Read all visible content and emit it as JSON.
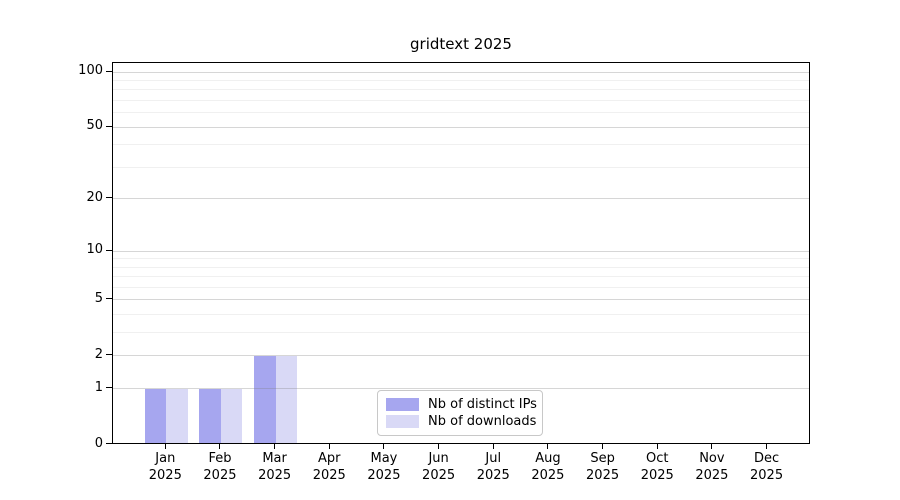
{
  "figure": {
    "background": "#ffffff"
  },
  "chart_data": {
    "type": "bar",
    "title": "gridtext 2025",
    "categories": [
      "Jan",
      "Feb",
      "Mar",
      "Apr",
      "May",
      "Jun",
      "Jul",
      "Aug",
      "Sep",
      "Oct",
      "Nov",
      "Dec"
    ],
    "category_year": "2025",
    "series": [
      {
        "name": "Nb of distinct IPs",
        "color": "#a6a6ef",
        "values": [
          1,
          1,
          2,
          0,
          0,
          0,
          0,
          0,
          0,
          0,
          0,
          0
        ]
      },
      {
        "name": "Nb of downloads",
        "color": "#d9d9f6",
        "values": [
          1,
          1,
          2,
          0,
          0,
          0,
          0,
          0,
          0,
          0,
          0,
          0
        ]
      }
    ],
    "xlabel": "",
    "ylabel": "",
    "y_axis": {
      "scale": "log1p",
      "ticks": [
        0,
        1,
        2,
        5,
        10,
        20,
        50,
        100
      ],
      "minor_gridlines": [
        3,
        4,
        6,
        7,
        8,
        9,
        30,
        40,
        60,
        70,
        80,
        90
      ],
      "ylim": [
        0,
        111
      ]
    },
    "grid": true,
    "legend": {
      "position": "bottom-center",
      "entries": [
        "Nb of distinct IPs",
        "Nb of downloads"
      ]
    },
    "colors": {
      "axis": "#000000",
      "major_grid": "#b5b5b5",
      "minor_grid": "#e6e6e6",
      "legend_border": "#c8c8c8"
    }
  }
}
